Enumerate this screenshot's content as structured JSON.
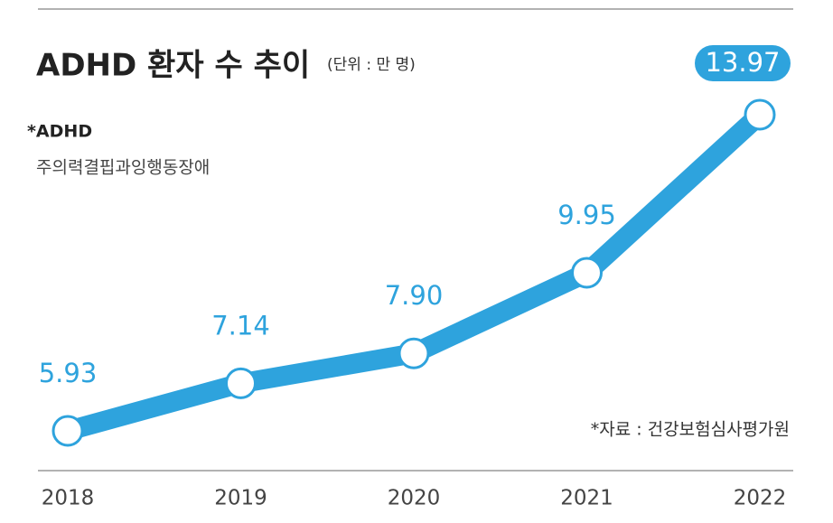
{
  "chart_data": {
    "type": "line",
    "title": "ADHD 환자 수 추이",
    "subtitle": "(단위 : 만 명)",
    "annotations": [
      "*ADHD",
      "주의력결핍과잉행동장애"
    ],
    "source": "*자료 : 건강보험심사평가원",
    "categories": [
      "2018",
      "2019",
      "2020",
      "2021",
      "2022"
    ],
    "values": [
      5.93,
      7.14,
      7.9,
      9.95,
      13.97
    ],
    "value_labels": [
      "5.93",
      "7.14",
      "7.90",
      "9.95",
      "13.97"
    ],
    "color": "#2ea3dd"
  }
}
